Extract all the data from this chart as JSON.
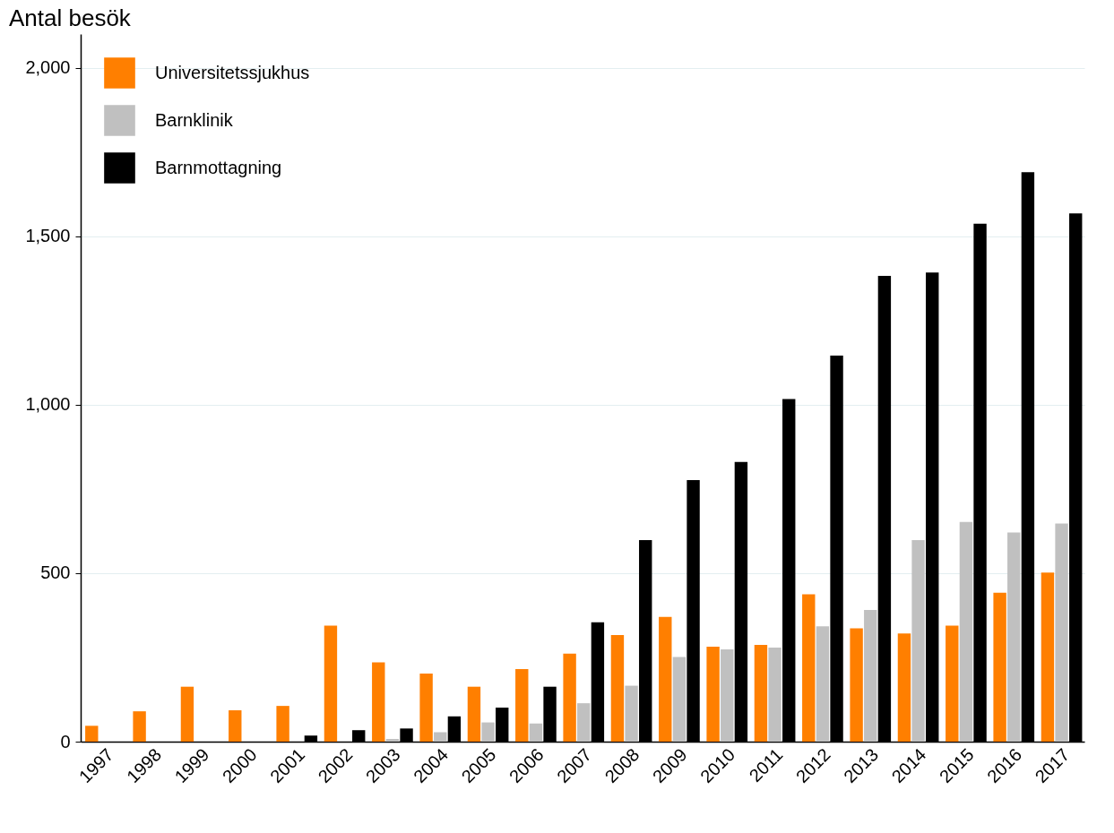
{
  "chart_data": {
    "type": "bar",
    "ylabel": "Antal besök",
    "categories": [
      "1997",
      "1998",
      "1999",
      "2000",
      "2001",
      "2002",
      "2003",
      "2004",
      "2005",
      "2006",
      "2007",
      "2008",
      "2009",
      "2010",
      "2011",
      "2012",
      "2013",
      "2014",
      "2015",
      "2016",
      "2017"
    ],
    "series": [
      {
        "name": "Universitetssjukhus",
        "color": "#ff7f00",
        "values": [
          47,
          90,
          163,
          93,
          106,
          344,
          235,
          202,
          163,
          215,
          261,
          316,
          370,
          282,
          287,
          437,
          336,
          321,
          344,
          442,
          502
        ]
      },
      {
        "name": "Barnklinik",
        "color": "#c0c0c0",
        "values": [
          0,
          0,
          0,
          0,
          0,
          0,
          8,
          28,
          57,
          54,
          114,
          166,
          251,
          274,
          279,
          342,
          391,
          598,
          652,
          621,
          647
        ]
      },
      {
        "name": "Barnmottagning",
        "color": "#000000",
        "values": [
          0,
          0,
          0,
          0,
          18,
          34,
          39,
          75,
          101,
          163,
          354,
          598,
          776,
          830,
          1017,
          1146,
          1382,
          1392,
          1537,
          1690,
          1568
        ]
      }
    ],
    "ylim": [
      0,
      2100
    ],
    "yticks": [
      {
        "value": 0,
        "label": "0"
      },
      {
        "value": 500,
        "label": "500"
      },
      {
        "value": 1000,
        "label": "1,000"
      },
      {
        "value": 1500,
        "label": "1,500"
      },
      {
        "value": 2000,
        "label": "2,000"
      }
    ],
    "grid": "y",
    "legend": "top left"
  }
}
